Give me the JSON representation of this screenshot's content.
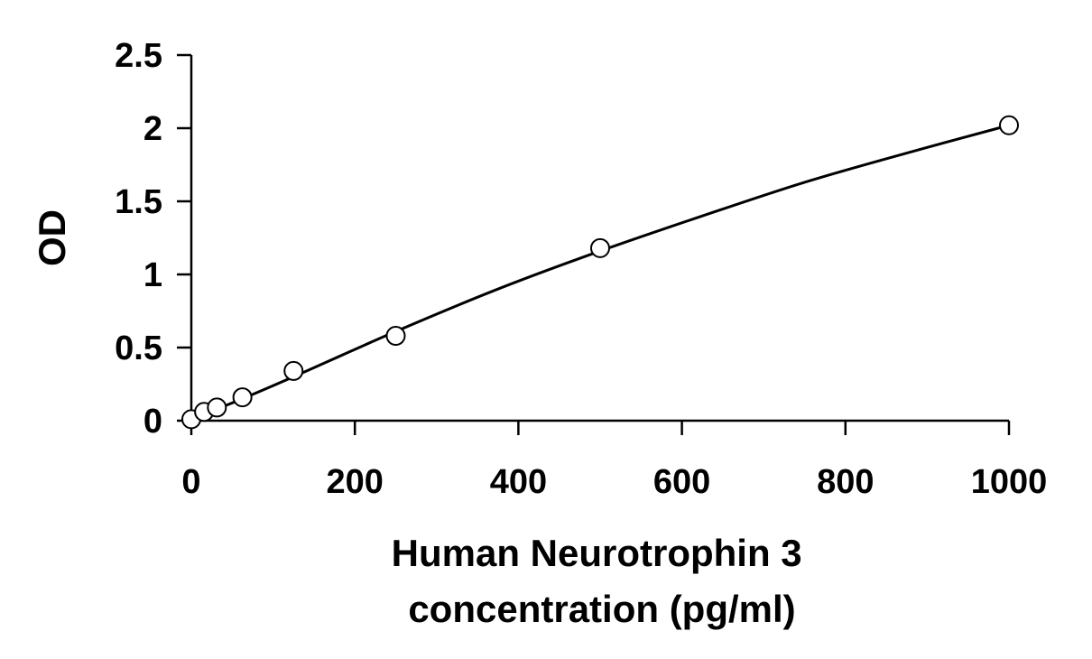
{
  "chart_data": {
    "type": "scatter",
    "xlabel_lines": [
      "Human Neurotrophin 3",
      "concentration (pg/ml)"
    ],
    "ylabel": "OD",
    "xlim": [
      0,
      1000
    ],
    "ylim": [
      0,
      2.5
    ],
    "x_ticks": [
      0,
      200,
      400,
      600,
      800,
      1000
    ],
    "x_tick_labels": [
      "0",
      "200",
      "400",
      "600",
      "800",
      "1000"
    ],
    "y_ticks": [
      0,
      0.5,
      1,
      1.5,
      2,
      2.5
    ],
    "y_tick_labels": [
      "0",
      "0.5",
      "1",
      "1.5",
      "2",
      "2.5"
    ],
    "grid": false,
    "series": [
      {
        "marker": "open-circle",
        "x": [
          0,
          15.6,
          31.25,
          62.5,
          125,
          250,
          500,
          1000
        ],
        "y": [
          0.01,
          0.06,
          0.09,
          0.16,
          0.34,
          0.58,
          1.18,
          2.02
        ]
      }
    ],
    "fit_curve": {
      "x": [
        0,
        15.6,
        31.25,
        62.5,
        125,
        250,
        375,
        500,
        625,
        750,
        875,
        1000
      ],
      "y": [
        0.01,
        0.045,
        0.08,
        0.15,
        0.3,
        0.61,
        0.9,
        1.16,
        1.4,
        1.63,
        1.83,
        2.02
      ]
    },
    "colors": {
      "axis": "#000000",
      "marker": "#000000",
      "curve": "#000000"
    }
  }
}
